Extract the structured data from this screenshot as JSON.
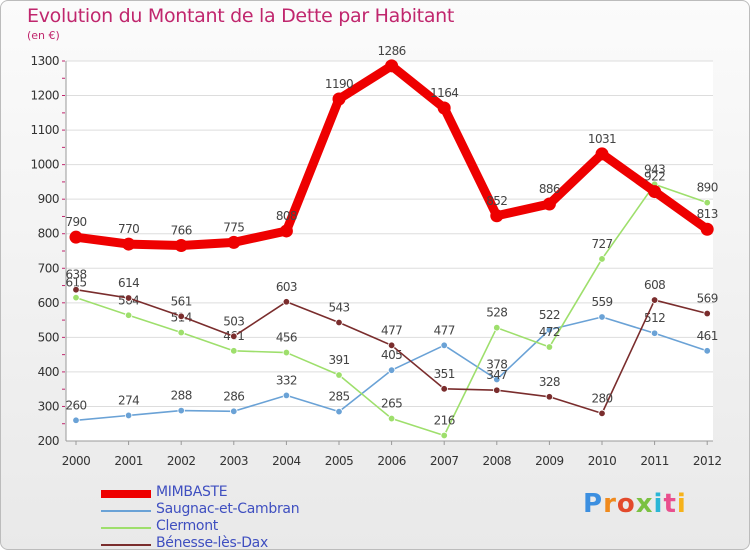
{
  "title": "Evolution du Montant de la Dette par Habitant",
  "unit_label": "(en €)",
  "logo": {
    "text": "Proxiti",
    "letter_colors": [
      "#3c8fe0",
      "#f08a1c",
      "#e34a2c",
      "#7bc142",
      "#2bb6d6",
      "#e94f8e",
      "#f6b21a"
    ]
  },
  "chart_data": {
    "type": "line",
    "title": "Evolution du Montant de la Dette par Habitant",
    "ylabel": "(en €)",
    "xlabel": "",
    "ylim": [
      200,
      1300
    ],
    "y_ticks": [
      200,
      300,
      400,
      500,
      600,
      700,
      800,
      900,
      1000,
      1100,
      1200,
      1300
    ],
    "grid": "horizontal",
    "legend_position": "bottom-left",
    "categories": [
      "2000",
      "2001",
      "2002",
      "2003",
      "2004",
      "2005",
      "2006",
      "2007",
      "2008",
      "2009",
      "2010",
      "2011",
      "2012"
    ],
    "series": [
      {
        "name": "MIMBASTE",
        "color": "#ee0000",
        "values": [
          790,
          770,
          766,
          775,
          808,
          1190,
          1286,
          1164,
          852,
          886,
          1031,
          922,
          813
        ],
        "labels": [
          "790",
          "770",
          "766",
          "775",
          "808",
          "1190",
          "1286",
          "1164",
          "852",
          "886",
          "1031",
          "922",
          "813"
        ]
      },
      {
        "name": "Saugnac-et-Cambran",
        "color": "#6aa2d6",
        "values": [
          260,
          274,
          288,
          286,
          332,
          285,
          405,
          477,
          378,
          522,
          559,
          512,
          461
        ],
        "labels": [
          "260",
          "274",
          "288",
          "286",
          "332",
          "285",
          "405",
          "477",
          "378",
          "522",
          "559",
          "512",
          "461"
        ]
      },
      {
        "name": "Clermont",
        "color": "#9edf6c",
        "values": [
          615,
          564,
          514,
          461,
          456,
          391,
          265,
          216,
          528,
          472,
          727,
          943,
          890
        ],
        "labels": [
          "615",
          "564",
          "514",
          "461",
          "456",
          "391",
          "265",
          "216",
          "528",
          "472",
          "727",
          "943",
          "890"
        ]
      },
      {
        "name": "Bénesse-lès-Dax",
        "color": "#7a2d2d",
        "values": [
          638,
          614,
          561,
          503,
          603,
          543,
          477,
          351,
          347,
          328,
          280,
          608,
          569
        ],
        "labels": [
          "638",
          "614",
          "561",
          "503",
          "603",
          "543",
          "477",
          "351",
          "347",
          "328",
          "280",
          "608",
          "569"
        ]
      }
    ]
  }
}
